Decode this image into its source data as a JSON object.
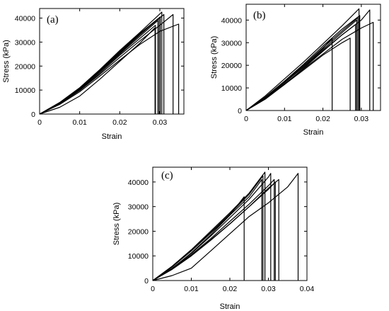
{
  "chart_data": [
    {
      "type": "line",
      "panel_label": "(a)",
      "xlabel": "Strain",
      "ylabel": "Stress (kPa)",
      "xlim": [
        0,
        0.036
      ],
      "ylim": [
        0,
        44000
      ],
      "xticks": [
        0,
        0.01,
        0.02,
        0.03
      ],
      "xtick_labels": [
        "0",
        "0.01",
        "0.02",
        "0.03"
      ],
      "yticks": [
        0,
        10000,
        20000,
        30000,
        40000
      ],
      "ytick_labels": [
        "0",
        "10000",
        "20000",
        "30000",
        "40000"
      ],
      "legend": "none",
      "series": [
        {
          "x": [
            0,
            0.005,
            0.01,
            0.015,
            0.02,
            0.025,
            0.0305,
            0.0305
          ],
          "y": [
            0,
            4800,
            11000,
            18500,
            26500,
            34000,
            42500,
            0
          ]
        },
        {
          "x": [
            0,
            0.005,
            0.01,
            0.015,
            0.02,
            0.025,
            0.031,
            0.031
          ],
          "y": [
            0,
            4600,
            10700,
            18000,
            25800,
            33300,
            41500,
            0
          ]
        },
        {
          "x": [
            0,
            0.005,
            0.01,
            0.015,
            0.02,
            0.025,
            0.0301,
            0.0301
          ],
          "y": [
            0,
            4700,
            10800,
            18200,
            26000,
            33600,
            40500,
            0
          ]
        },
        {
          "x": [
            0,
            0.005,
            0.01,
            0.015,
            0.02,
            0.025,
            0.0298,
            0.0298
          ],
          "y": [
            0,
            4500,
            10500,
            17800,
            25400,
            33000,
            40000,
            0
          ]
        },
        {
          "x": [
            0,
            0.005,
            0.01,
            0.015,
            0.02,
            0.025,
            0.0295,
            0.0295
          ],
          "y": [
            0,
            4400,
            10300,
            17500,
            25000,
            32400,
            39000,
            0
          ]
        },
        {
          "x": [
            0,
            0.005,
            0.01,
            0.015,
            0.02,
            0.025,
            0.0289,
            0.0289
          ],
          "y": [
            0,
            4300,
            10000,
            17000,
            24500,
            31500,
            37000,
            0
          ]
        },
        {
          "x": [
            0,
            0.005,
            0.01,
            0.015,
            0.02,
            0.025,
            0.03,
            0.0333,
            0.0333
          ],
          "y": [
            0,
            4200,
            9800,
            16500,
            23600,
            30500,
            37000,
            41500,
            0
          ]
        },
        {
          "x": [
            0,
            0.005,
            0.01,
            0.015,
            0.02,
            0.025,
            0.03,
            0.0347,
            0.0347
          ],
          "y": [
            0,
            4000,
            9300,
            15800,
            22500,
            29000,
            34500,
            37500,
            0
          ]
        },
        {
          "x": [
            0,
            0.005,
            0.01,
            0.015,
            0.02,
            0.025,
            0.0288,
            0.0288
          ],
          "y": [
            0,
            2800,
            7500,
            14500,
            22000,
            29500,
            36000,
            0
          ]
        }
      ]
    },
    {
      "type": "line",
      "panel_label": "(b)",
      "xlabel": "Strain",
      "ylabel": "Stress (kPa)",
      "xlim": [
        0,
        0.035
      ],
      "ylim": [
        0,
        47000
      ],
      "xticks": [
        0,
        0.01,
        0.02,
        0.03
      ],
      "xtick_labels": [
        "0",
        "0.01",
        "0.02",
        "0.03"
      ],
      "yticks": [
        0,
        10000,
        20000,
        30000,
        40000
      ],
      "ytick_labels": [
        "0",
        "10000",
        "20000",
        "30000",
        "40000"
      ],
      "legend": "none",
      "series": [
        {
          "x": [
            0,
            0.005,
            0.01,
            0.015,
            0.02,
            0.025,
            0.0294,
            0.0294
          ],
          "y": [
            0,
            6500,
            14000,
            21500,
            29500,
            37500,
            45000,
            0
          ]
        },
        {
          "x": [
            0,
            0.005,
            0.01,
            0.015,
            0.02,
            0.025,
            0.0296,
            0.0296
          ],
          "y": [
            0,
            6000,
            13000,
            20500,
            28500,
            36000,
            42000,
            0
          ]
        },
        {
          "x": [
            0,
            0.005,
            0.01,
            0.015,
            0.02,
            0.025,
            0.0291,
            0.0291
          ],
          "y": [
            0,
            5800,
            12800,
            20000,
            27800,
            35200,
            41000,
            0
          ]
        },
        {
          "x": [
            0,
            0.005,
            0.01,
            0.015,
            0.02,
            0.025,
            0.0288,
            0.0288
          ],
          "y": [
            0,
            5500,
            12300,
            19500,
            27000,
            34500,
            40000,
            0
          ]
        },
        {
          "x": [
            0,
            0.005,
            0.01,
            0.015,
            0.02,
            0.025,
            0.03,
            0.0322,
            0.0322
          ],
          "y": [
            0,
            5600,
            12300,
            19300,
            26500,
            33500,
            40000,
            44500,
            0
          ]
        },
        {
          "x": [
            0,
            0.005,
            0.01,
            0.015,
            0.02,
            0.025,
            0.03,
            0.0331,
            0.0331
          ],
          "y": [
            0,
            5400,
            11800,
            18500,
            25000,
            31500,
            36500,
            39000,
            0
          ]
        },
        {
          "x": [
            0,
            0.005,
            0.01,
            0.015,
            0.02,
            0.0224,
            0.0224
          ],
          "y": [
            0,
            5800,
            12700,
            20000,
            27500,
            32000,
            0
          ]
        },
        {
          "x": [
            0,
            0.005,
            0.01,
            0.015,
            0.02,
            0.025,
            0.0271,
            0.0271
          ],
          "y": [
            0,
            5300,
            11500,
            18000,
            24500,
            30000,
            32000,
            0
          ]
        },
        {
          "x": [
            0,
            0.005,
            0.01,
            0.015,
            0.02,
            0.025,
            0.0285,
            0.0285
          ],
          "y": [
            0,
            5000,
            11500,
            18800,
            26200,
            33500,
            38000,
            0
          ]
        }
      ]
    },
    {
      "type": "line",
      "panel_label": "(c)",
      "xlabel": "Strain",
      "ylabel": "Stress (kPa)",
      "xlim": [
        0,
        0.04
      ],
      "ylim": [
        0,
        46000
      ],
      "xticks": [
        0,
        0.01,
        0.02,
        0.03,
        0.04
      ],
      "xtick_labels": [
        "0",
        "0.01",
        "0.02",
        "0.03",
        "0.04"
      ],
      "yticks": [
        0,
        10000,
        20000,
        30000,
        40000
      ],
      "ytick_labels": [
        "0",
        "10000",
        "20000",
        "30000",
        "40000"
      ],
      "legend": "none",
      "series": [
        {
          "x": [
            0,
            0.005,
            0.01,
            0.015,
            0.02,
            0.025,
            0.0291,
            0.0291
          ],
          "y": [
            0,
            5800,
            12500,
            20000,
            27500,
            35500,
            44000,
            0
          ]
        },
        {
          "x": [
            0,
            0.005,
            0.01,
            0.015,
            0.02,
            0.025,
            0.0286,
            0.0286
          ],
          "y": [
            0,
            5600,
            12200,
            19500,
            27000,
            35000,
            42500,
            0
          ]
        },
        {
          "x": [
            0,
            0.005,
            0.01,
            0.015,
            0.02,
            0.025,
            0.0283,
            0.0283
          ],
          "y": [
            0,
            5500,
            12000,
            19200,
            26500,
            34000,
            41000,
            0
          ]
        },
        {
          "x": [
            0,
            0.005,
            0.01,
            0.015,
            0.02,
            0.025,
            0.03,
            0.0306,
            0.0306
          ],
          "y": [
            0,
            5000,
            11000,
            18000,
            25500,
            33000,
            42000,
            43500,
            0
          ]
        },
        {
          "x": [
            0,
            0.005,
            0.01,
            0.015,
            0.02,
            0.025,
            0.03,
            0.0315,
            0.0315
          ],
          "y": [
            0,
            4800,
            10500,
            17000,
            24000,
            31000,
            38500,
            41000,
            0
          ]
        },
        {
          "x": [
            0,
            0.005,
            0.01,
            0.015,
            0.02,
            0.025,
            0.03,
            0.0318,
            0.0318
          ],
          "y": [
            0,
            4600,
            10200,
            16500,
            23000,
            30000,
            37000,
            40000,
            0
          ]
        },
        {
          "x": [
            0,
            0.005,
            0.01,
            0.015,
            0.02,
            0.025,
            0.03,
            0.0327,
            0.0327
          ],
          "y": [
            0,
            4500,
            10000,
            16300,
            23000,
            30000,
            37500,
            41000,
            0
          ]
        },
        {
          "x": [
            0,
            0.005,
            0.01,
            0.015,
            0.02,
            0.0237,
            0.0237
          ],
          "y": [
            0,
            4800,
            11200,
            18500,
            26500,
            34000,
            0
          ]
        },
        {
          "x": [
            0,
            0.005,
            0.01,
            0.015,
            0.02,
            0.025,
            0.03,
            0.035,
            0.0377,
            0.0377
          ],
          "y": [
            0,
            2000,
            5000,
            12000,
            19000,
            26000,
            31500,
            38000,
            43500,
            0
          ]
        }
      ]
    }
  ]
}
